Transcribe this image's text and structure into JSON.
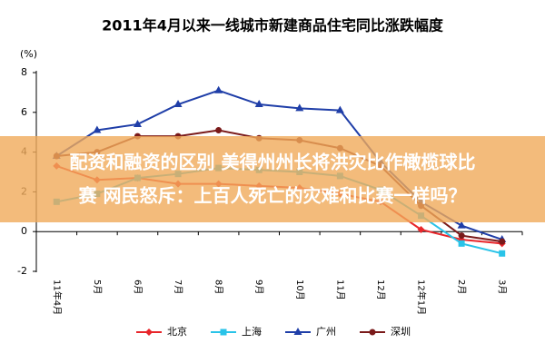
{
  "chart_data": {
    "type": "line",
    "title": "2011年4月以来一线城市新建商品住宅同比涨跌幅度",
    "y_label": "(%)",
    "categories": [
      "11年4月",
      "5月",
      "6月",
      "7月",
      "8月",
      "9月",
      "10月",
      "11月",
      "12月",
      "12年1月",
      "2月",
      "3月"
    ],
    "series": [
      {
        "name": "北京",
        "color": "#e8262b",
        "marker": "diamond",
        "values": [
          3.3,
          2.6,
          2.7,
          2.4,
          2.4,
          2.3,
          2.2,
          1.9,
          1.5,
          0.1,
          -0.4,
          -0.6
        ]
      },
      {
        "name": "上海",
        "color": "#29c3e8",
        "marker": "square",
        "values": [
          1.5,
          1.9,
          2.7,
          2.9,
          3.2,
          3.1,
          3.0,
          2.8,
          2.1,
          0.8,
          -0.6,
          -1.1
        ]
      },
      {
        "name": "广州",
        "color": "#1f3ea8",
        "marker": "triangle",
        "values": [
          3.8,
          5.1,
          5.4,
          6.4,
          7.1,
          6.4,
          6.2,
          6.1,
          3.5,
          1.5,
          0.3,
          -0.4
        ]
      },
      {
        "name": "深圳",
        "color": "#7a1a1a",
        "marker": "circle",
        "values": [
          3.8,
          4.0,
          4.8,
          4.8,
          5.1,
          4.7,
          4.6,
          4.2,
          3.3,
          1.3,
          -0.2,
          -0.5
        ]
      }
    ],
    "ylim": [
      -2,
      8
    ],
    "yticks": [
      -2,
      0,
      2,
      4,
      6,
      8
    ],
    "grid": false
  },
  "banner": {
    "lines": [
      "配资和融资的区别 美得州州长将洪灾比作橄榄球比",
      "赛 网民怒斥：上百人死亡的灾难和比赛一样吗？"
    ]
  }
}
